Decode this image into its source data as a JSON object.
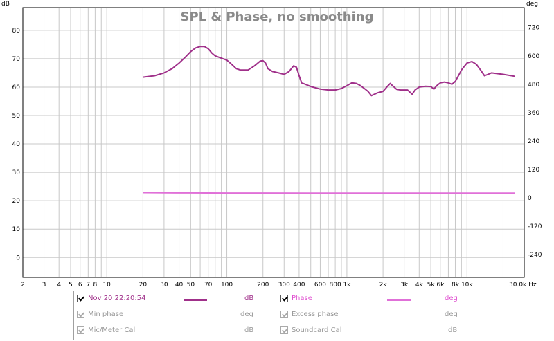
{
  "chart_data": {
    "type": "line",
    "title": "SPL & Phase, no smoothing",
    "left_unit": "dB",
    "right_unit": "deg",
    "x_unit": "Hz",
    "x_scale": "log",
    "xlim": [
      2,
      30000
    ],
    "ylim": [
      -7,
      88
    ],
    "y2lim": [
      -336,
      804
    ],
    "x_tick_labels": [
      {
        "v": 2,
        "t": "2"
      },
      {
        "v": 3,
        "t": "3"
      },
      {
        "v": 4,
        "t": "4"
      },
      {
        "v": 5,
        "t": "5"
      },
      {
        "v": 6,
        "t": "6"
      },
      {
        "v": 7,
        "t": "7"
      },
      {
        "v": 8,
        "t": "8"
      },
      {
        "v": 10,
        "t": "10"
      },
      {
        "v": 20,
        "t": "20"
      },
      {
        "v": 30,
        "t": "30"
      },
      {
        "v": 40,
        "t": "40"
      },
      {
        "v": 50,
        "t": "50"
      },
      {
        "v": 70,
        "t": "70"
      },
      {
        "v": 100,
        "t": "100"
      },
      {
        "v": 200,
        "t": "200"
      },
      {
        "v": 300,
        "t": "300"
      },
      {
        "v": 400,
        "t": "400"
      },
      {
        "v": 600,
        "t": "600"
      },
      {
        "v": 800,
        "t": "800"
      },
      {
        "v": 1000,
        "t": "1k"
      },
      {
        "v": 2000,
        "t": "2k"
      },
      {
        "v": 3000,
        "t": "3k"
      },
      {
        "v": 4000,
        "t": "4k"
      },
      {
        "v": 5000,
        "t": "5k"
      },
      {
        "v": 6000,
        "t": "6k"
      },
      {
        "v": 8000,
        "t": "8k"
      },
      {
        "v": 10000,
        "t": "10k"
      },
      {
        "v": 30000,
        "t": "30.0k Hz"
      }
    ],
    "y_ticks": [
      0,
      10,
      20,
      30,
      40,
      50,
      60,
      70,
      80
    ],
    "y2_ticks": [
      -240,
      -120,
      0,
      120,
      240,
      360,
      480,
      600,
      720
    ],
    "grid": true,
    "series": [
      {
        "name": "Nov 20 22:20:54",
        "axis": "left",
        "color": "#a0308a",
        "points": [
          [
            20,
            63.5
          ],
          [
            25,
            64
          ],
          [
            30,
            65
          ],
          [
            35,
            66.5
          ],
          [
            40,
            68.5
          ],
          [
            45,
            70.5
          ],
          [
            50,
            72.5
          ],
          [
            55,
            73.8
          ],
          [
            60,
            74.3
          ],
          [
            65,
            74.3
          ],
          [
            70,
            73.5
          ],
          [
            75,
            72
          ],
          [
            80,
            71
          ],
          [
            90,
            70.2
          ],
          [
            100,
            69.5
          ],
          [
            110,
            68
          ],
          [
            120,
            66.5
          ],
          [
            130,
            66
          ],
          [
            150,
            66
          ],
          [
            170,
            67.5
          ],
          [
            190,
            69.2
          ],
          [
            200,
            69.3
          ],
          [
            210,
            68.5
          ],
          [
            220,
            66.5
          ],
          [
            240,
            65.5
          ],
          [
            270,
            65
          ],
          [
            300,
            64.5
          ],
          [
            330,
            65.5
          ],
          [
            360,
            67.5
          ],
          [
            380,
            67
          ],
          [
            400,
            64
          ],
          [
            420,
            61.5
          ],
          [
            450,
            61
          ],
          [
            500,
            60.2
          ],
          [
            600,
            59.3
          ],
          [
            700,
            59
          ],
          [
            800,
            59
          ],
          [
            900,
            59.5
          ],
          [
            1000,
            60.5
          ],
          [
            1100,
            61.5
          ],
          [
            1200,
            61.3
          ],
          [
            1300,
            60.5
          ],
          [
            1400,
            59.5
          ],
          [
            1500,
            58.5
          ],
          [
            1600,
            57
          ],
          [
            1700,
            57.5
          ],
          [
            1800,
            58
          ],
          [
            2000,
            58.5
          ],
          [
            2200,
            60.5
          ],
          [
            2300,
            61.3
          ],
          [
            2400,
            60.5
          ],
          [
            2600,
            59.2
          ],
          [
            2800,
            59
          ],
          [
            3200,
            59
          ],
          [
            3500,
            57.5
          ],
          [
            3700,
            59
          ],
          [
            4000,
            60
          ],
          [
            4500,
            60.3
          ],
          [
            5000,
            60.2
          ],
          [
            5300,
            59.3
          ],
          [
            5600,
            60.5
          ],
          [
            6000,
            61.5
          ],
          [
            6500,
            61.8
          ],
          [
            7000,
            61.5
          ],
          [
            7500,
            61
          ],
          [
            8000,
            62
          ],
          [
            8500,
            64
          ],
          [
            9000,
            66
          ],
          [
            10000,
            68.5
          ],
          [
            11000,
            69
          ],
          [
            12000,
            68
          ],
          [
            13000,
            66
          ],
          [
            14000,
            64
          ],
          [
            15000,
            64.5
          ],
          [
            16000,
            65
          ],
          [
            20000,
            64.5
          ],
          [
            25000,
            63.8
          ]
        ]
      },
      {
        "name": "Phase",
        "axis": "right",
        "color": "#e070d8",
        "points": [
          [
            20,
            22
          ],
          [
            25,
            21.7
          ],
          [
            30,
            21.4
          ],
          [
            40,
            21
          ],
          [
            50,
            20.8
          ],
          [
            70,
            20.6
          ],
          [
            100,
            20.4
          ],
          [
            200,
            20.2
          ],
          [
            500,
            20.1
          ],
          [
            1000,
            20
          ],
          [
            2000,
            20
          ],
          [
            5000,
            19.9
          ],
          [
            10000,
            19.9
          ],
          [
            15000,
            19.9
          ],
          [
            20000,
            19.8
          ],
          [
            25000,
            19.6
          ]
        ]
      }
    ]
  },
  "legend": {
    "rows": [
      {
        "left": {
          "label": "Nov 20 22:20:54",
          "unit": "dB",
          "checked": true,
          "enabled": true,
          "color": "#a0308a"
        },
        "right": {
          "label": "Phase",
          "unit": "deg",
          "checked": true,
          "enabled": true,
          "color": "#e070d8"
        }
      },
      {
        "left": {
          "label": "Min phase",
          "unit": "deg",
          "checked": true,
          "enabled": false
        },
        "right": {
          "label": "Excess phase",
          "unit": "deg",
          "checked": true,
          "enabled": false
        }
      },
      {
        "left": {
          "label": "Mic/Meter Cal",
          "unit": "dB",
          "checked": true,
          "enabled": false
        },
        "right": {
          "label": "Soundcard Cal",
          "unit": "dB",
          "checked": true,
          "enabled": false
        }
      }
    ]
  }
}
